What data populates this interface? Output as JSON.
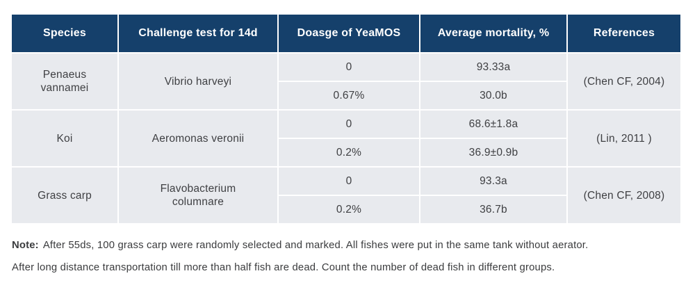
{
  "colors": {
    "header_bg": "#15406b",
    "header_text": "#ffffff",
    "cell_bg": "#e8eaee",
    "body_text": "#3e3f42",
    "note_text": "#3a3b3d",
    "divider": "#ffffff",
    "page_bg": "#ffffff"
  },
  "table": {
    "headers": [
      "Species",
      "Challenge test for 14d",
      "Doasge of YeaMOS",
      "Average mortality, %",
      "References"
    ],
    "groups": [
      {
        "species": "Penaeus vannamei",
        "challenge": "Vibrio harveyi",
        "rows": [
          {
            "dosage": "0",
            "mortality": "93.33a"
          },
          {
            "dosage": "0.67%",
            "mortality": "30.0b"
          }
        ],
        "reference": "(Chen CF, 2004)"
      },
      {
        "species": "Koi",
        "challenge": "Aeromonas veronii",
        "rows": [
          {
            "dosage": "0",
            "mortality": "68.6±1.8a"
          },
          {
            "dosage": "0.2%",
            "mortality": "36.9±0.9b"
          }
        ],
        "reference": "(Lin, 2011 )"
      },
      {
        "species": "Grass carp",
        "challenge": "Flavobacterium columnare",
        "rows": [
          {
            "dosage": "0",
            "mortality": "93.3a"
          },
          {
            "dosage": "0.2%",
            "mortality": "36.7b"
          }
        ],
        "reference": "(Chen CF, 2008)"
      }
    ]
  },
  "note": {
    "label": "Note:",
    "line1": "After 55ds, 100 grass carp were randomly selected and marked.  All fishes were put in the same tank without aerator.",
    "line2": "After long distance transportation till more than half fish are dead. Count the number of dead fish in different groups."
  }
}
